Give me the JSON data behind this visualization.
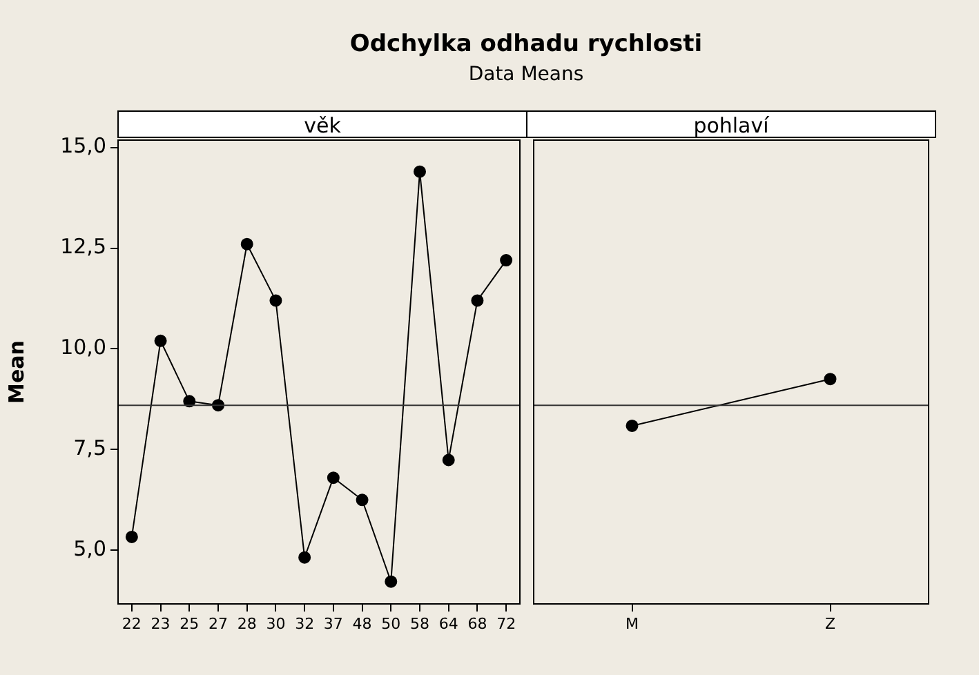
{
  "chart_data": [
    {
      "type": "line",
      "title": "Odchylka odhadu rychlosti",
      "subtitle": "Data Means",
      "ylabel": "Mean",
      "annotations": [
        "věk"
      ],
      "categories": [
        "22",
        "23",
        "25",
        "27",
        "28",
        "30",
        "32",
        "37",
        "48",
        "50",
        "58",
        "64",
        "68",
        "72"
      ],
      "series": [
        {
          "color": "#000000",
          "values": [
            5.33,
            10.2,
            8.7,
            8.6,
            12.6,
            11.2,
            4.82,
            6.8,
            6.25,
            4.22,
            14.4,
            7.24,
            11.2,
            12.2
          ]
        }
      ],
      "ylim": [
        3.65,
        15.2
      ],
      "yticks": [
        {
          "value": 5,
          "label": "5,0"
        },
        {
          "value": 7.5,
          "label": "7,5"
        },
        {
          "value": 10,
          "label": "10,0"
        },
        {
          "value": 12.5,
          "label": "12,5"
        },
        {
          "value": 15,
          "label": "15,0"
        }
      ],
      "ref_lines": [
        {
          "axis": "y",
          "value": 8.6,
          "color": "#333333"
        }
      ],
      "marker": "circle",
      "grid": false,
      "legend": false
    },
    {
      "type": "line",
      "annotations": [
        "pohlaví"
      ],
      "categories": [
        "M",
        "Z"
      ],
      "series": [
        {
          "color": "#000000",
          "values": [
            8.09,
            9.25
          ]
        }
      ],
      "ylim": [
        3.65,
        15.2
      ],
      "ref_lines": [
        {
          "axis": "y",
          "value": 8.6,
          "color": "#333333"
        }
      ],
      "marker": "circle",
      "grid": false,
      "legend": false,
      "tick_labels": "x"
    }
  ]
}
